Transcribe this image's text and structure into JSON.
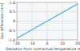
{
  "chart_data": {
    "type": "line",
    "x_label": "Deviation from contractual temperature (K)",
    "y_label": "Gap difference (mm)",
    "x": [
      -20,
      -10,
      0,
      10,
      20
    ],
    "series": [
      {
        "name": "Gap difference",
        "color": "#4aaed9",
        "values": [
          -0.92,
          -0.46,
          0,
          0.46,
          0.92
        ]
      }
    ],
    "xlim": [
      -20,
      20
    ],
    "xticks": [
      -20,
      -10,
      0,
      10,
      20
    ],
    "ylim": [
      -1,
      1
    ],
    "yticks": [
      {
        "value": -1,
        "label": "-1.0"
      },
      -0.5,
      0,
      0.5,
      {
        "value": 1,
        "label": "1.0"
      }
    ],
    "grid": true
  }
}
